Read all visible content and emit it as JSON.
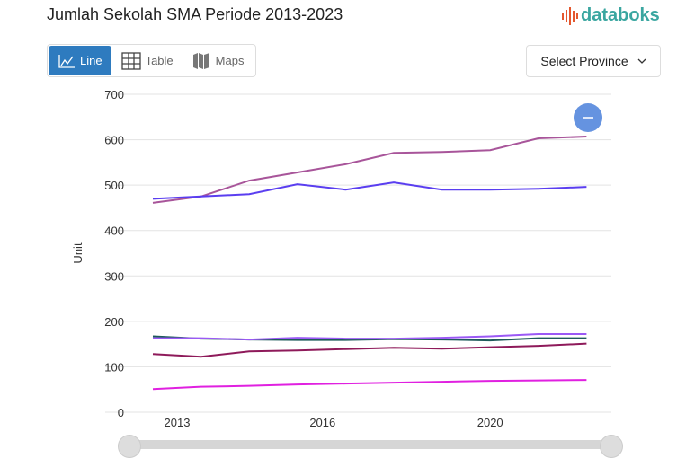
{
  "header": {
    "title": "Jumlah Sekolah SMA Periode 2013-2023",
    "logo": "databoks"
  },
  "tabs": [
    {
      "label": "Line",
      "icon": "line-chart-icon",
      "active": true
    },
    {
      "label": "Table",
      "icon": "table-icon"
    },
    {
      "label": "Maps",
      "icon": "map-icon"
    }
  ],
  "province_select": {
    "label": "Select Province"
  },
  "chart_data": {
    "type": "line",
    "title": "Jumlah Sekolah SMA Periode 2013-2023",
    "xlabel": "",
    "ylabel": "Unit",
    "ylim": [
      0,
      700
    ],
    "yticks": [
      0,
      100,
      200,
      300,
      400,
      500,
      600,
      700
    ],
    "xtick_labels": [
      {
        "label": "2013",
        "index": 0
      },
      {
        "label": "2016",
        "index": 3
      },
      {
        "label": "2020",
        "index": 7
      }
    ],
    "grid": true,
    "series": [
      {
        "color": "#a8559a",
        "values": [
          461,
          475,
          510,
          528,
          546,
          571,
          573,
          577,
          603,
          607
        ]
      },
      {
        "color": "#5a3ef0",
        "values": [
          470,
          475,
          480,
          502,
          490,
          506,
          490,
          490,
          492,
          496
        ]
      },
      {
        "color": "#1e5a5a",
        "values": [
          167,
          162,
          160,
          159,
          159,
          161,
          160,
          158,
          163,
          163
        ]
      },
      {
        "color": "#9b59f5",
        "values": [
          163,
          163,
          160,
          164,
          162,
          162,
          164,
          167,
          172,
          172
        ]
      },
      {
        "color": "#8e1a5a",
        "values": [
          128,
          122,
          134,
          136,
          139,
          142,
          140,
          143,
          146,
          151
        ]
      },
      {
        "color": "#e020e0",
        "values": [
          51,
          56,
          58,
          61,
          63,
          65,
          67,
          69,
          70,
          71
        ]
      }
    ]
  }
}
